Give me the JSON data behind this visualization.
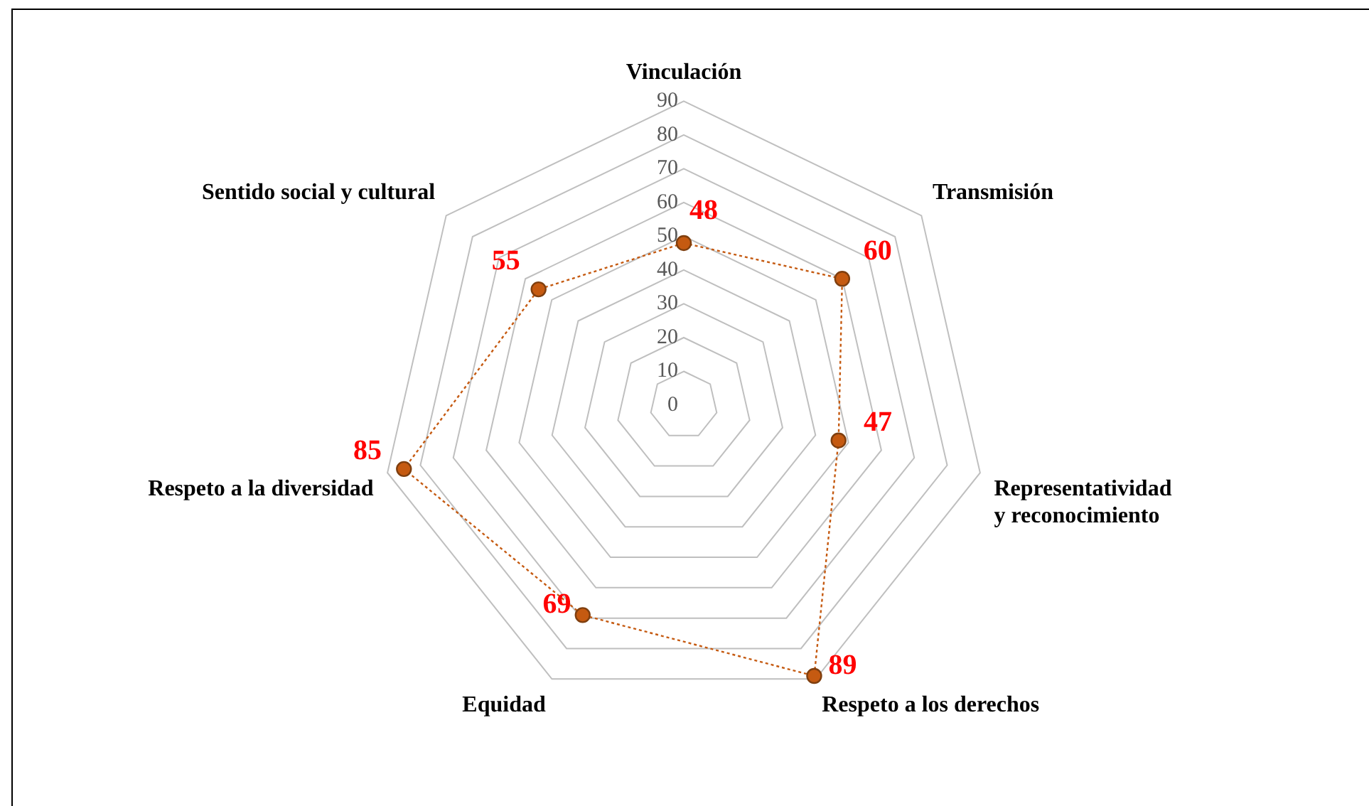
{
  "chart_data": {
    "type": "radar",
    "categories": [
      "Vinculación",
      "Transmisión",
      "Representatividad y reconocimiento",
      "Respeto a los derechos",
      "Equidad",
      "Respeto a la diversidad",
      "Sentido social y cultural"
    ],
    "series": [
      {
        "color": "#c55a11",
        "values": [
          48,
          60,
          47,
          89,
          69,
          85,
          55
        ]
      }
    ],
    "ylim": [
      0,
      90
    ],
    "yticks": [
      0,
      10,
      20,
      30,
      40,
      50,
      60,
      70,
      80,
      90
    ],
    "grid": true,
    "data_labels": true,
    "marker": "circle",
    "line_style": "dotted",
    "legend": false
  }
}
